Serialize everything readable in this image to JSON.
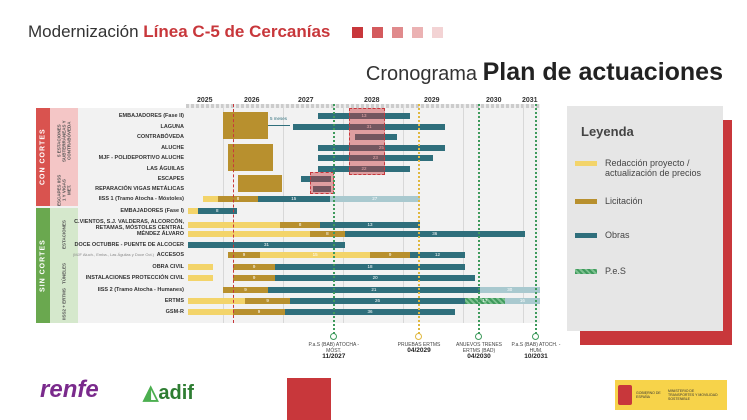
{
  "header": {
    "title_prefix": "Modernización",
    "title_highlight": "Línea C-5 de Cercanías",
    "subtitle_prefix": "Cronograma",
    "subtitle_main": "Plan de actuaciones"
  },
  "colors": {
    "redaccion": "#f3d46a",
    "licitacion": "#b8902e",
    "obras": "#2f6f7c",
    "pes": "#3e9a5c",
    "obras_light": "#a9c9cf",
    "today": "#c8373b",
    "con_cortes": "#d9534f",
    "sin_cortes": "#6aa84f"
  },
  "years": [
    "2025",
    "2026",
    "2027",
    "2028",
    "2029",
    "2030",
    "2031"
  ],
  "groups": [
    {
      "label": "CON CORTES",
      "subgroups": [
        "5 ESTACIONES SUBTERRÁNEAS Y CONTRABÓVEDA",
        "ESCAPES IISS 1 Y VIGAS MET."
      ]
    },
    {
      "label": "SIN CORTES",
      "subgroups": [
        "ESTACIONES",
        "TÚNELES",
        "IISS2 + ERTMS"
      ]
    }
  ],
  "annotation": "5 meses",
  "today": 2026.17,
  "rows": [
    {
      "label": "EMBAJADORES (Fase II)",
      "bars": [
        [
          2027.58,
          2029.12,
          "obras",
          "13"
        ]
      ]
    },
    {
      "label": "LAGUNA",
      "bars": [
        [
          2027.17,
          2029.7,
          "obras",
          "31"
        ]
      ]
    },
    {
      "label": "CONTRABÓVEDA",
      "bars": [
        [
          2028.2,
          2028.9,
          "obras",
          ""
        ]
      ]
    },
    {
      "label": "ALUCHE",
      "bars": [
        [
          2027.58,
          2029.7,
          "obras",
          "25"
        ]
      ]
    },
    {
      "label": "MJF - POLIDEPORTIVO ALUCHE",
      "bars": [
        [
          2027.58,
          2029.5,
          "obras",
          "23"
        ]
      ]
    },
    {
      "label": "LAS ÁGUILAS",
      "bars": [
        [
          2027.58,
          2029.12,
          "obras",
          "22"
        ]
      ]
    },
    {
      "label": "ESCAPES",
      "bars": [
        [
          2027.3,
          2027.8,
          "obras",
          ""
        ]
      ]
    },
    {
      "label": "REPARACIÓN VIGAS METÁLICAS",
      "bars": [
        [
          2027.5,
          2027.8,
          "obras",
          ""
        ]
      ]
    },
    {
      "label": "IISS 1 (Tramo Atocha - Móstoles)",
      "bars": [
        [
          2025.67,
          2025.92,
          "redaccion",
          ""
        ],
        [
          2025.92,
          2026.58,
          "licitacion",
          "8"
        ],
        [
          2026.58,
          2027.78,
          "obras",
          "15"
        ],
        [
          2027.78,
          2029.28,
          "obras_light",
          "27"
        ]
      ]
    },
    {
      "label": "EMBAJADORES (Fase I)",
      "bars": [
        [
          2025.42,
          2025.58,
          "redaccion",
          ""
        ],
        [
          2025.58,
          2026.23,
          "obras",
          "8"
        ]
      ]
    },
    {
      "label": "C.VIENTOS, S.J. VALDERAS, ALCORCÓN, RETAMAS, MÓSTOLES CENTRAL",
      "bars": [
        [
          2025.42,
          2026.95,
          "redaccion",
          ""
        ],
        [
          2026.95,
          2027.62,
          "licitacion",
          "8"
        ],
        [
          2027.62,
          2029.28,
          "obras",
          "13"
        ]
      ]
    },
    {
      "label": "MÉNDEZ ÁLVARO",
      "bars": [
        [
          2025.42,
          2027.45,
          "redaccion",
          ""
        ],
        [
          2027.45,
          2028.03,
          "licitacion",
          "8"
        ],
        [
          2028.03,
          2031.03,
          "obras",
          "36"
        ]
      ]
    },
    {
      "label": "DOCE OCTUBRE - PUENTE DE ALCOCER",
      "bars": [
        [
          2025.42,
          2028.03,
          "obras",
          "31"
        ]
      ]
    },
    {
      "label": "ACCESOS",
      "note": "(MJF Aluch., Emba., Las Águilas y Doce Oct.)",
      "bars": [
        [
          2026.08,
          2026.62,
          "licitacion",
          "9"
        ],
        [
          2026.62,
          2028.45,
          "redaccion",
          "15"
        ],
        [
          2028.45,
          2029.12,
          "licitacion",
          "9"
        ],
        [
          2029.12,
          2030.03,
          "obras",
          "12"
        ]
      ]
    },
    {
      "label": "OBRA CIVIL",
      "bars": [
        [
          2025.42,
          2025.83,
          "redaccion",
          ""
        ],
        [
          2026.17,
          2026.87,
          "licitacion",
          "9"
        ],
        [
          2026.87,
          2030.03,
          "obras",
          "18"
        ]
      ]
    },
    {
      "label": "INSTALACIONES PROTECCIÓN CIVIL",
      "bars": [
        [
          2025.42,
          2025.83,
          "redaccion",
          ""
        ],
        [
          2026.17,
          2026.87,
          "licitacion",
          "9"
        ],
        [
          2026.87,
          2030.2,
          "obras",
          "20"
        ]
      ]
    },
    {
      "label": "IISS 2 (Tramo Atocha - Humanes)",
      "bars": [
        [
          2026.0,
          2026.75,
          "licitacion",
          "9"
        ],
        [
          2026.75,
          2030.28,
          "obras",
          "21"
        ],
        [
          2030.28,
          2031.28,
          "obras_light",
          "30"
        ]
      ]
    },
    {
      "label": "ERTMS",
      "bars": [
        [
          2025.42,
          2026.37,
          "redaccion",
          ""
        ],
        [
          2026.37,
          2027.12,
          "licitacion",
          "9"
        ],
        [
          2027.12,
          2030.03,
          "obras",
          "26"
        ],
        [
          2030.03,
          2030.7,
          "pes",
          "17"
        ],
        [
          2030.7,
          2031.28,
          "obras_light",
          "16"
        ]
      ]
    },
    {
      "label": "GSM-R",
      "bars": [
        [
          2025.42,
          2026.17,
          "redaccion",
          ""
        ],
        [
          2026.17,
          2027.03,
          "licitacion",
          "9"
        ],
        [
          2027.03,
          2029.87,
          "obras",
          "36"
        ]
      ]
    }
  ],
  "milestones": [
    {
      "date": 2027.83,
      "text": "P.a.S (BAB) ATOCHA -MÓST.",
      "label": "11/2027",
      "color": "#3e9a5c"
    },
    {
      "date": 2029.25,
      "text": "PRUEBAS ERTMS",
      "label": "04/2029",
      "color": "#e0b840"
    },
    {
      "date": 2030.25,
      "text": "ANUEVOS TRENES ERTMS (BAD)",
      "label": "04/2030",
      "color": "#3e9a5c"
    },
    {
      "date": 2031.75,
      "text": "P.a.S (BAB) ATOCH. - HUM.",
      "label": "10/2031",
      "color": "#3e9a5c"
    }
  ],
  "legend": {
    "title": "Leyenda",
    "items": [
      {
        "label": "Redacción proyecto / actualización de precios",
        "key": "redaccion"
      },
      {
        "label": "Licitación",
        "key": "licitacion"
      },
      {
        "label": "Obras",
        "key": "obras"
      },
      {
        "label": "P.e.S",
        "key": "pes"
      }
    ]
  },
  "logos": {
    "renfe": "renfe",
    "adif": "adif",
    "gobierno": "GOBIERNO DE ESPAÑA",
    "ministerio": "MINISTERIO DE TRANSPORTES Y MOVILIDAD SOSTENIBLE"
  }
}
